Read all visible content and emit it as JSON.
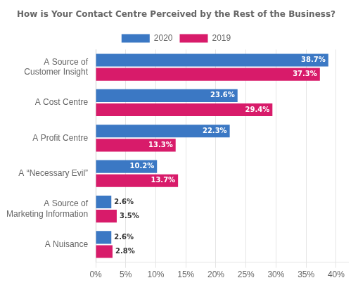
{
  "chart_data": {
    "type": "bar",
    "orientation": "horizontal",
    "title": "How is Your Contact Centre Perceived by the Rest of the Business?",
    "categories": [
      "A Source of\nCustomer Insight",
      "A Cost Centre",
      "A Profit Centre",
      "A “Necessary Evil”",
      "A Source of\nMarketing Information",
      "A Nuisance"
    ],
    "series": [
      {
        "name": "2020",
        "color": "#3B78C4",
        "values": [
          38.7,
          23.6,
          22.3,
          10.2,
          2.6,
          2.6
        ],
        "value_labels": [
          "38.7%",
          "23.6%",
          "22.3%",
          "10.2%",
          "2.6%",
          "2.6%"
        ]
      },
      {
        "name": "2019",
        "color": "#D81B6A",
        "values": [
          37.3,
          29.4,
          13.3,
          13.7,
          3.5,
          2.8
        ],
        "value_labels": [
          "37.3%",
          "29.4%",
          "13.3%",
          "13.7%",
          "3.5%",
          "2.8%"
        ]
      }
    ],
    "xlim": [
      0,
      42
    ],
    "xticks": [
      {
        "value": 0,
        "label": "0%"
      },
      {
        "value": 5,
        "label": "5%"
      },
      {
        "value": 10,
        "label": "10%"
      },
      {
        "value": 15,
        "label": "15%"
      },
      {
        "value": 20,
        "label": "20%"
      },
      {
        "value": 25,
        "label": "25%"
      },
      {
        "value": 30,
        "label": "30%"
      },
      {
        "value": 35,
        "label": "35%"
      },
      {
        "value": 40,
        "label": "40%"
      }
    ],
    "grid": true,
    "legend": "top",
    "data_labels": true
  }
}
